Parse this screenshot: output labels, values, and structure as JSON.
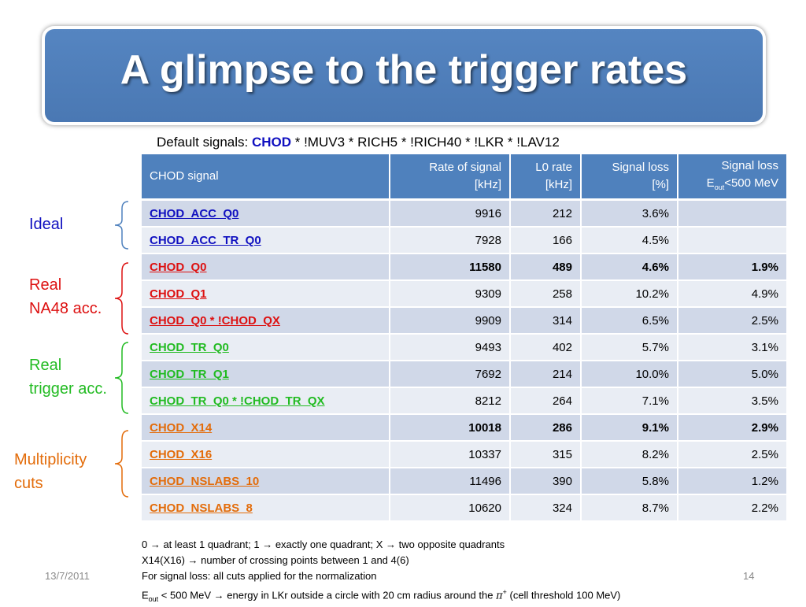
{
  "title": "A glimpse to the trigger rates",
  "defaults": {
    "prefix": "Default signals: ",
    "chod": "CHOD",
    "rest": " * !MUV3 * RICH5 * !RICH40 * !LKR * !LAV12"
  },
  "table": {
    "headers": {
      "signal": "CHOD signal",
      "rate_1": "Rate of signal",
      "rate_2": "[kHz]",
      "l0_1": "L0 rate",
      "l0_2": "[kHz]",
      "loss_1": "Signal loss",
      "loss_2": "[%]",
      "eloss_1": "Signal loss",
      "eloss_E": "E",
      "eloss_sub": "out",
      "eloss_rest": "<500 MeV"
    },
    "rows": [
      {
        "signal": "CHOD_ACC_Q0",
        "rate": "9916",
        "l0": "212",
        "loss": "3.6%",
        "eloss": ""
      },
      {
        "signal": "CHOD_ACC_TR_Q0",
        "rate": "7928",
        "l0": "166",
        "loss": "4.5%",
        "eloss": ""
      },
      {
        "signal": "CHOD_Q0",
        "rate": "11580",
        "l0": "489",
        "loss": "4.6%",
        "eloss": "1.9%"
      },
      {
        "signal": "CHOD_Q1",
        "rate": "9309",
        "l0": "258",
        "loss": "10.2%",
        "eloss": "4.9%"
      },
      {
        "signal": "CHOD_Q0 * !CHOD_QX",
        "rate": "9909",
        "l0": "314",
        "loss": "6.5%",
        "eloss": "2.5%"
      },
      {
        "signal": "CHOD_TR_Q0",
        "rate": "9493",
        "l0": "402",
        "loss": "5.7%",
        "eloss": "3.1%"
      },
      {
        "signal": "CHOD_TR_Q1",
        "rate": "7692",
        "l0": "214",
        "loss": "10.0%",
        "eloss": "5.0%"
      },
      {
        "signal": "CHOD_TR_Q0 * !CHOD_TR_QX",
        "rate": "8212",
        "l0": "264",
        "loss": "7.1%",
        "eloss": "3.5%"
      },
      {
        "signal": "CHOD_X14",
        "rate": "10018",
        "l0": "286",
        "loss": "9.1%",
        "eloss": "2.9%"
      },
      {
        "signal": "CHOD_X16",
        "rate": "10337",
        "l0": "315",
        "loss": "8.2%",
        "eloss": "2.5%"
      },
      {
        "signal": "CHOD_NSLABS_10",
        "rate": "11496",
        "l0": "390",
        "loss": "5.8%",
        "eloss": "1.2%"
      },
      {
        "signal": "CHOD_NSLABS_8",
        "rate": "10620",
        "l0": "324",
        "loss": "8.7%",
        "eloss": "2.2%"
      }
    ]
  },
  "groups": {
    "ideal": "Ideal",
    "real_na48_1": "Real",
    "real_na48_2": "NA48 acc.",
    "real_trigger_1": "Real",
    "real_trigger_2": "trigger acc.",
    "multiplicity_1": "Multiplicity",
    "multiplicity_2": "cuts"
  },
  "colors": {
    "blue": "#1010c0",
    "red": "#dd1111",
    "green": "#22bb22",
    "orange": "#e36c0a",
    "header": "#4f81bd"
  },
  "notes": {
    "line1_a": "0 ",
    "line1_b": " at least 1 quadrant; 1 ",
    "line1_c": " exactly one quadrant; X ",
    "line1_d": " two opposite quadrants",
    "line2_a": "X14(X16) ",
    "line2_b": " number of crossing points between 1 and 4(6)",
    "line3": "For signal loss: all cuts applied for the normalization",
    "line4_E": "E",
    "line4_sub": "out",
    "line4_a": " < 500 MeV ",
    "line4_b": " energy in LKr outside a circle with 20 cm radius around the ",
    "line4_pi": "π",
    "line4_sup": "+",
    "line4_c": " (cell threshold 100 MeV)",
    "arrow": "→"
  },
  "footer": {
    "date": "13/7/2011",
    "page": "14"
  }
}
